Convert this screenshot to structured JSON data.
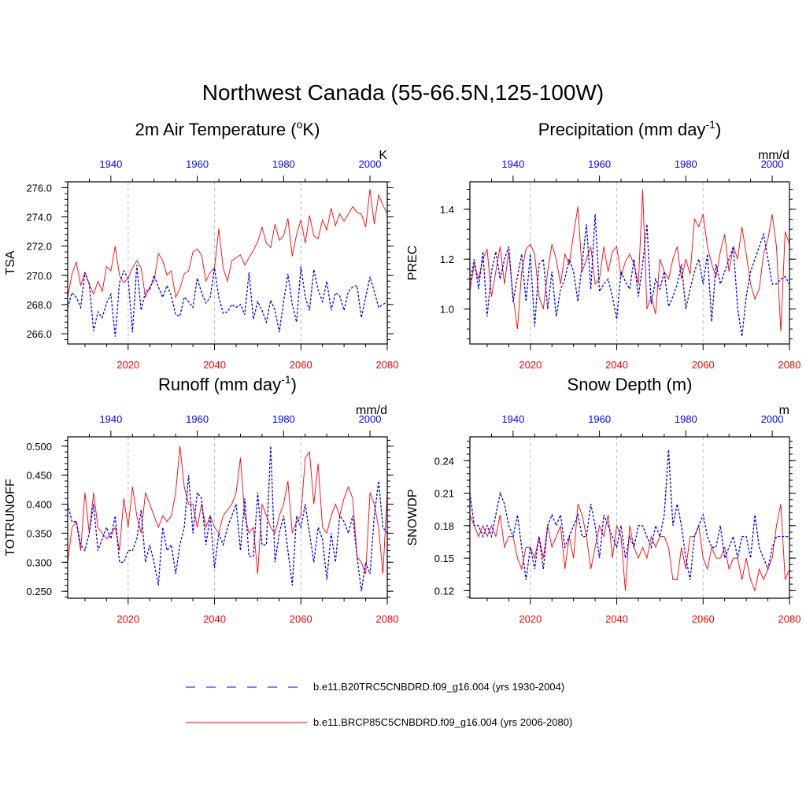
{
  "figure": {
    "title": "Northwest Canada (55-66.5N,125-100W)"
  },
  "legend": {
    "items": [
      {
        "label": "b.e11.B20TRC5CNBDRD.f09_g16.004 (yrs 1930-2004)",
        "color": "#0000ff",
        "style": "dashed"
      },
      {
        "label": "b.e11.BRCP85C5CNBDRD.f09_g16.004 (yrs 2006-2080)",
        "color": "#ff0000",
        "style": "solid"
      }
    ]
  },
  "chart_data": [
    {
      "type": "line",
      "title_main": "2m Air Temperature (",
      "title_sup": "o",
      "title_end": "K)",
      "ylabel": "TSA",
      "units": "K",
      "ylim": [
        265.3,
        276.4
      ],
      "yticks": [
        266.0,
        268.0,
        270.0,
        272.0,
        274.0,
        276.0
      ],
      "ytick_labels": [
        "266.0",
        "268.0",
        "270.0",
        "272.0",
        "274.0",
        "276.0"
      ],
      "x_bottom": {
        "range": [
          2006,
          2080
        ],
        "ticks": [
          2020,
          2040,
          2060,
          2080
        ],
        "color": "#ff0000"
      },
      "x_top": {
        "range": [
          1930,
          2004
        ],
        "ticks": [
          1940,
          1960,
          1980,
          2000
        ],
        "color": "#0000ff"
      },
      "series": [
        {
          "name": "b.e11.BRCP85C5CNBDRD.f09_g16.004 (yrs 2006-2080)",
          "color": "#ff0000",
          "values": [
            268.5,
            270.1,
            270.9,
            269.3,
            270.2,
            269.4,
            268.7,
            269.6,
            268.9,
            270.6,
            270.3,
            272.0,
            270.0,
            269.5,
            269.8,
            270.5,
            271.0,
            270.5,
            268.5,
            269.2,
            269.6,
            271.5,
            271.0,
            270.0,
            270.3,
            268.5,
            269.1,
            270.1,
            270.3,
            271.6,
            271.8,
            271.4,
            269.6,
            270.2,
            270.5,
            273.2,
            270.5,
            269.6,
            271.0,
            271.2,
            271.4,
            270.7,
            271.2,
            271.7,
            272.3,
            273.3,
            272.2,
            271.9,
            273.5,
            272.4,
            272.7,
            273.9,
            271.3,
            272.8,
            273.8,
            272.2,
            274.1,
            272.7,
            272.5,
            273.8,
            273.1,
            274.6,
            273.4,
            274.2,
            273.7,
            274.2,
            274.7,
            274.3,
            274.2,
            273.3,
            275.9,
            273.5,
            275.5,
            274.8,
            274.2
          ]
        },
        {
          "name": "b.e11.B20TRC5CNBDRD.f09_g16.004 (yrs 1930-2004)",
          "color": "#0000ff",
          "values": [
            267.8,
            268.8,
            268.5,
            267.8,
            270.2,
            269.4,
            266.2,
            267.5,
            267.1,
            268.1,
            268.7,
            265.8,
            269.5,
            270.3,
            269.8,
            266.1,
            270.7,
            267.6,
            268.9,
            269.0,
            270.0,
            269.2,
            268.5,
            269.3,
            268.6,
            267.3,
            267.2,
            268.5,
            268.2,
            267.8,
            269.8,
            268.8,
            268.1,
            268.5,
            270.5,
            268.5,
            267.4,
            267.5,
            268.0,
            267.8,
            268.0,
            267.3,
            270.2,
            267.0,
            268.2,
            267.6,
            266.8,
            268.3,
            267.6,
            266.1,
            268.2,
            270.1,
            268.0,
            266.8,
            270.6,
            268.5,
            267.6,
            270.4,
            269.0,
            268.2,
            269.6,
            267.6,
            268.8,
            268.6,
            267.6,
            268.9,
            269.2,
            269.3,
            267.1,
            268.5,
            269.9,
            268.9,
            267.8,
            268.0,
            268.2
          ]
        }
      ]
    },
    {
      "type": "line",
      "title_main": "Precipitation (mm day",
      "title_sup": "-1",
      "title_end": ")",
      "ylabel": "PREC",
      "units": "mm/d",
      "ylim": [
        0.86,
        1.51
      ],
      "yticks": [
        1.0,
        1.2,
        1.4
      ],
      "ytick_labels": [
        "1.0",
        "1.2",
        "1.4"
      ],
      "x_bottom": {
        "range": [
          2006,
          2080
        ],
        "ticks": [
          2020,
          2040,
          2060,
          2080
        ],
        "color": "#ff0000"
      },
      "x_top": {
        "range": [
          1930,
          2004
        ],
        "ticks": [
          1940,
          1960,
          1980,
          2000
        ],
        "color": "#0000ff"
      },
      "series": [
        {
          "name": "b.e11.BRCP85C5CNBDRD.f09_g16.004 (yrs 2006-2080)",
          "color": "#ff0000",
          "values": [
            1.07,
            1.18,
            1.12,
            1.2,
            1.24,
            1.05,
            1.15,
            1.25,
            1.1,
            1.23,
            1.05,
            0.92,
            1.15,
            1.24,
            1.26,
            1.22,
            1.05,
            1.0,
            1.15,
            1.26,
            1.2,
            1.1,
            1.22,
            1.18,
            1.3,
            1.41,
            1.15,
            1.2,
            1.25,
            1.1,
            1.12,
            1.25,
            1.15,
            1.23,
            1.25,
            1.13,
            1.19,
            1.22,
            1.18,
            1.1,
            1.48,
            1.0,
            1.05,
            0.98,
            1.2,
            1.15,
            1.12,
            1.2,
            1.25,
            1.12,
            1.2,
            1.14,
            1.36,
            1.33,
            1.38,
            1.25,
            1.18,
            1.13,
            1.23,
            1.3,
            1.15,
            1.25,
            1.2,
            1.33,
            1.22,
            1.1,
            1.04,
            1.08,
            1.22,
            1.28,
            1.38,
            1.25,
            0.91,
            1.31,
            1.26
          ]
        },
        {
          "name": "b.e11.B20TRC5CNBDRD.f09_g16.004 (yrs 1930-2004)",
          "color": "#0000ff",
          "values": [
            1.1,
            1.2,
            1.08,
            1.23,
            0.97,
            1.15,
            1.23,
            1.12,
            1.2,
            1.25,
            1.03,
            1.13,
            1.22,
            1.03,
            1.22,
            0.93,
            1.18,
            1.2,
            1.0,
            1.15,
            0.97,
            1.08,
            1.12,
            1.2,
            1.15,
            1.03,
            1.18,
            1.34,
            1.08,
            1.38,
            1.07,
            1.1,
            1.12,
            1.05,
            0.96,
            1.15,
            1.11,
            1.08,
            1.2,
            1.05,
            1.18,
            1.34,
            1.02,
            1.12,
            1.08,
            1.15,
            1.01,
            1.05,
            1.1,
            1.18,
            1.0,
            1.08,
            1.15,
            1.2,
            1.1,
            1.22,
            0.95,
            1.18,
            1.1,
            1.15,
            1.2,
            1.25,
            1.0,
            0.89,
            1.05,
            1.15,
            1.2,
            1.25,
            1.3,
            1.2,
            1.1,
            1.1,
            1.12,
            1.13,
            1.1
          ]
        }
      ]
    },
    {
      "type": "line",
      "title_main": "Runoff (mm day",
      "title_sup": "-1",
      "title_end": ")",
      "ylabel": "TOTRUNOFF",
      "units": "mm/d",
      "ylim": [
        0.238,
        0.516
      ],
      "yticks": [
        0.25,
        0.3,
        0.35,
        0.4,
        0.45,
        0.5
      ],
      "ytick_labels": [
        "0.250",
        "0.300",
        "0.350",
        "0.400",
        "0.450",
        "0.500"
      ],
      "x_bottom": {
        "range": [
          2006,
          2080
        ],
        "ticks": [
          2020,
          2040,
          2060,
          2080
        ],
        "color": "#ff0000"
      },
      "x_top": {
        "range": [
          1930,
          2004
        ],
        "ticks": [
          1940,
          1960,
          1980,
          2000
        ],
        "color": "#0000ff"
      },
      "series": [
        {
          "name": "b.e11.BRCP85C5CNBDRD.f09_g16.004 (yrs 2006-2080)",
          "color": "#ff0000",
          "values": [
            0.3,
            0.36,
            0.37,
            0.32,
            0.42,
            0.35,
            0.42,
            0.36,
            0.35,
            0.34,
            0.35,
            0.36,
            0.32,
            0.41,
            0.36,
            0.43,
            0.38,
            0.35,
            0.42,
            0.4,
            0.38,
            0.36,
            0.38,
            0.37,
            0.38,
            0.42,
            0.5,
            0.43,
            0.4,
            0.4,
            0.36,
            0.4,
            0.36,
            0.38,
            0.36,
            0.35,
            0.38,
            0.39,
            0.4,
            0.42,
            0.48,
            0.38,
            0.35,
            0.36,
            0.28,
            0.4,
            0.38,
            0.36,
            0.35,
            0.38,
            0.4,
            0.44,
            0.35,
            0.37,
            0.38,
            0.48,
            0.49,
            0.4,
            0.47,
            0.36,
            0.35,
            0.38,
            0.4,
            0.38,
            0.41,
            0.43,
            0.41,
            0.31,
            0.3,
            0.28,
            0.42,
            0.4,
            0.36,
            0.28,
            0.42
          ]
        },
        {
          "name": "b.e11.B20TRC5CNBDRD.f09_g16.004 (yrs 1930-2004)",
          "color": "#0000ff",
          "values": [
            0.4,
            0.37,
            0.37,
            0.33,
            0.32,
            0.35,
            0.4,
            0.32,
            0.34,
            0.36,
            0.34,
            0.38,
            0.3,
            0.3,
            0.32,
            0.32,
            0.34,
            0.39,
            0.3,
            0.33,
            0.3,
            0.26,
            0.36,
            0.32,
            0.33,
            0.28,
            0.33,
            0.36,
            0.45,
            0.35,
            0.42,
            0.41,
            0.33,
            0.38,
            0.29,
            0.35,
            0.33,
            0.36,
            0.38,
            0.4,
            0.32,
            0.41,
            0.31,
            0.31,
            0.42,
            0.33,
            0.33,
            0.5,
            0.3,
            0.35,
            0.38,
            0.32,
            0.26,
            0.38,
            0.36,
            0.4,
            0.35,
            0.3,
            0.36,
            0.34,
            0.27,
            0.35,
            0.3,
            0.38,
            0.37,
            0.35,
            0.38,
            0.31,
            0.25,
            0.3,
            0.28,
            0.38,
            0.44,
            0.36,
            0.35
          ]
        }
      ]
    },
    {
      "type": "line",
      "title_main": "Snow Depth (m)",
      "title_sup": "",
      "title_end": "",
      "ylabel": "SNOWDP",
      "units": "m",
      "ylim": [
        0.113,
        0.262
      ],
      "yticks": [
        0.12,
        0.15,
        0.18,
        0.21,
        0.24
      ],
      "ytick_labels": [
        "0.12",
        "0.15",
        "0.18",
        "0.21",
        "0.24"
      ],
      "x_bottom": {
        "range": [
          2006,
          2080
        ],
        "ticks": [
          2020,
          2040,
          2060,
          2080
        ],
        "color": "#ff0000"
      },
      "x_top": {
        "range": [
          1930,
          2004
        ],
        "ticks": [
          1940,
          1960,
          1980,
          2000
        ],
        "color": "#0000ff"
      },
      "series": [
        {
          "name": "b.e11.BRCP85C5CNBDRD.f09_g16.004 (yrs 2006-2080)",
          "color": "#ff0000",
          "values": [
            0.19,
            0.18,
            0.17,
            0.18,
            0.17,
            0.18,
            0.17,
            0.19,
            0.16,
            0.17,
            0.17,
            0.15,
            0.14,
            0.16,
            0.16,
            0.15,
            0.17,
            0.15,
            0.18,
            0.16,
            0.17,
            0.18,
            0.14,
            0.17,
            0.15,
            0.2,
            0.19,
            0.17,
            0.14,
            0.16,
            0.18,
            0.17,
            0.19,
            0.15,
            0.18,
            0.17,
            0.12,
            0.18,
            0.16,
            0.15,
            0.16,
            0.15,
            0.17,
            0.16,
            0.17,
            0.17,
            0.16,
            0.13,
            0.13,
            0.16,
            0.14,
            0.17,
            0.17,
            0.18,
            0.15,
            0.14,
            0.16,
            0.15,
            0.15,
            0.16,
            0.14,
            0.15,
            0.15,
            0.13,
            0.15,
            0.13,
            0.12,
            0.14,
            0.13,
            0.14,
            0.15,
            0.18,
            0.2,
            0.13,
            0.14
          ]
        },
        {
          "name": "b.e11.B20TRC5CNBDRD.f09_g16.004 (yrs 1930-2004)",
          "color": "#0000ff",
          "values": [
            0.21,
            0.18,
            0.18,
            0.17,
            0.18,
            0.17,
            0.19,
            0.21,
            0.2,
            0.18,
            0.17,
            0.19,
            0.16,
            0.13,
            0.16,
            0.14,
            0.17,
            0.14,
            0.18,
            0.19,
            0.18,
            0.19,
            0.16,
            0.17,
            0.18,
            0.19,
            0.17,
            0.17,
            0.2,
            0.18,
            0.15,
            0.19,
            0.18,
            0.17,
            0.16,
            0.18,
            0.15,
            0.17,
            0.16,
            0.18,
            0.18,
            0.17,
            0.16,
            0.18,
            0.17,
            0.19,
            0.25,
            0.18,
            0.2,
            0.18,
            0.15,
            0.13,
            0.17,
            0.18,
            0.19,
            0.17,
            0.16,
            0.16,
            0.18,
            0.15,
            0.16,
            0.17,
            0.15,
            0.17,
            0.17,
            0.15,
            0.19,
            0.16,
            0.15,
            0.14,
            0.16,
            0.17,
            0.17,
            0.17,
            0.17
          ]
        }
      ]
    }
  ]
}
